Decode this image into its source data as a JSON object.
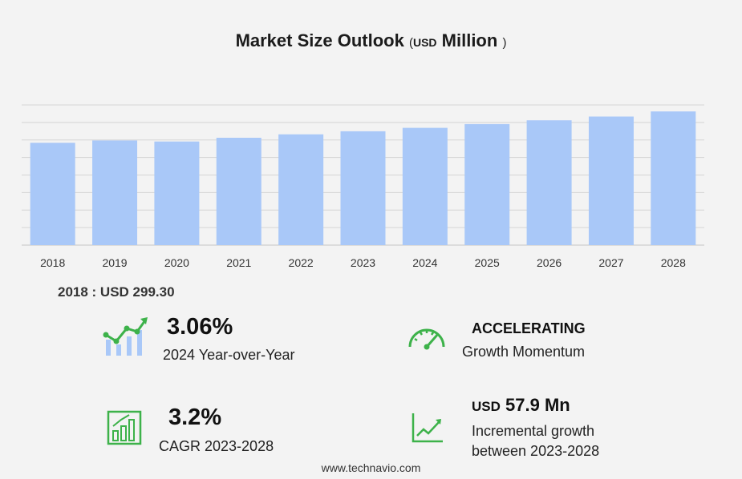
{
  "header": {
    "title": "Market Size Outlook",
    "paren_open": "(",
    "unit_currency": "USD",
    "unit_scale": "Million",
    "paren_close": ")"
  },
  "chart_data": {
    "type": "bar",
    "categories": [
      "2018",
      "2019",
      "2020",
      "2021",
      "2022",
      "2023",
      "2024",
      "2025",
      "2026",
      "2027",
      "2028"
    ],
    "values": [
      299.3,
      306,
      303,
      314,
      324,
      333,
      343,
      354,
      365,
      376,
      391
    ],
    "ylim": [
      0,
      410
    ],
    "grid": true,
    "bar_color": "#a9c8f8",
    "grid_color": "#d4d4d4"
  },
  "base_value": {
    "label": "2018 : USD  299.30"
  },
  "stats": {
    "yoy": {
      "value": "3.06%",
      "caption": "2024 Year-over-Year"
    },
    "momentum": {
      "heading": "ACCELERATING",
      "caption": "Growth Momentum"
    },
    "cagr": {
      "value": "3.2%",
      "caption": "CAGR 2023-2028"
    },
    "incremental": {
      "currency": "USD",
      "value": "57.9 Mn",
      "caption_line1": "Incremental growth",
      "caption_line2": "between 2023-2028"
    }
  },
  "icons": {
    "accent": "#3db24a",
    "yoy": "growth-chart-icon",
    "momentum": "speedometer-icon",
    "cagr": "bar-chart-icon",
    "incremental": "trend-line-icon"
  },
  "footer": {
    "source": "www.technavio.com"
  }
}
